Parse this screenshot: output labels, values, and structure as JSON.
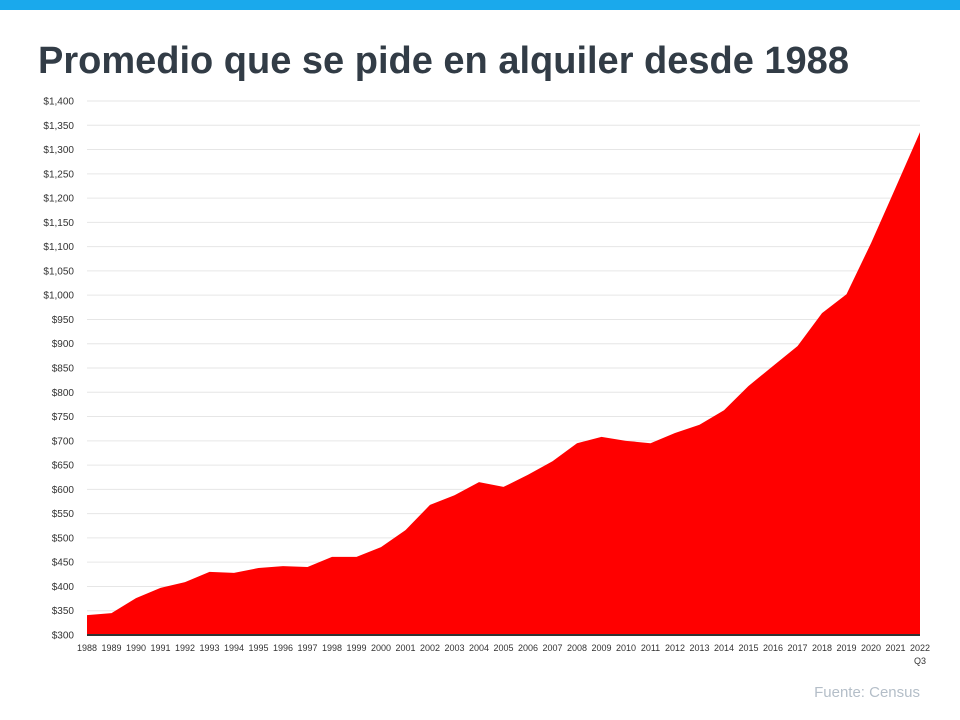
{
  "title": "Promedio que se pide en alquiler desde 1988",
  "source": "Fuente:  Census",
  "colors": {
    "top_bar": "#1aa9ec",
    "area": "#ff0000",
    "title": "#323c46"
  },
  "chart_data": {
    "type": "area",
    "title": "Promedio que se pide en alquiler desde 1988",
    "xlabel": "",
    "ylabel": "",
    "categories": [
      "1988",
      "1989",
      "1990",
      "1991",
      "1992",
      "1993",
      "1994",
      "1995",
      "1996",
      "1997",
      "1998",
      "1999",
      "2000",
      "2001",
      "2002",
      "2003",
      "2004",
      "2005",
      "2006",
      "2007",
      "2008",
      "2009",
      "2010",
      "2011",
      "2012",
      "2013",
      "2014",
      "2015",
      "2016",
      "2017",
      "2018",
      "2019",
      "2020",
      "2021",
      "2022"
    ],
    "last_category_sublabel": "Q3",
    "values": [
      341,
      345,
      376,
      397,
      409,
      430,
      428,
      438,
      442,
      440,
      461,
      461,
      481,
      516,
      568,
      588,
      615,
      605,
      630,
      658,
      695,
      708,
      700,
      695,
      716,
      733,
      763,
      813,
      854,
      895,
      963,
      1002,
      1107,
      1221,
      1336
    ],
    "ylim": [
      300,
      1400
    ],
    "yticks": [
      "$300",
      "$350",
      "$400",
      "$450",
      "$500",
      "$550",
      "$600",
      "$650",
      "$700",
      "$750",
      "$800",
      "$850",
      "$900",
      "$950",
      "$1,000",
      "$1,050",
      "$1,100",
      "$1,150",
      "$1,200",
      "$1,250",
      "$1,300",
      "$1,350",
      "$1,400"
    ],
    "grid": true,
    "legend": "none"
  }
}
